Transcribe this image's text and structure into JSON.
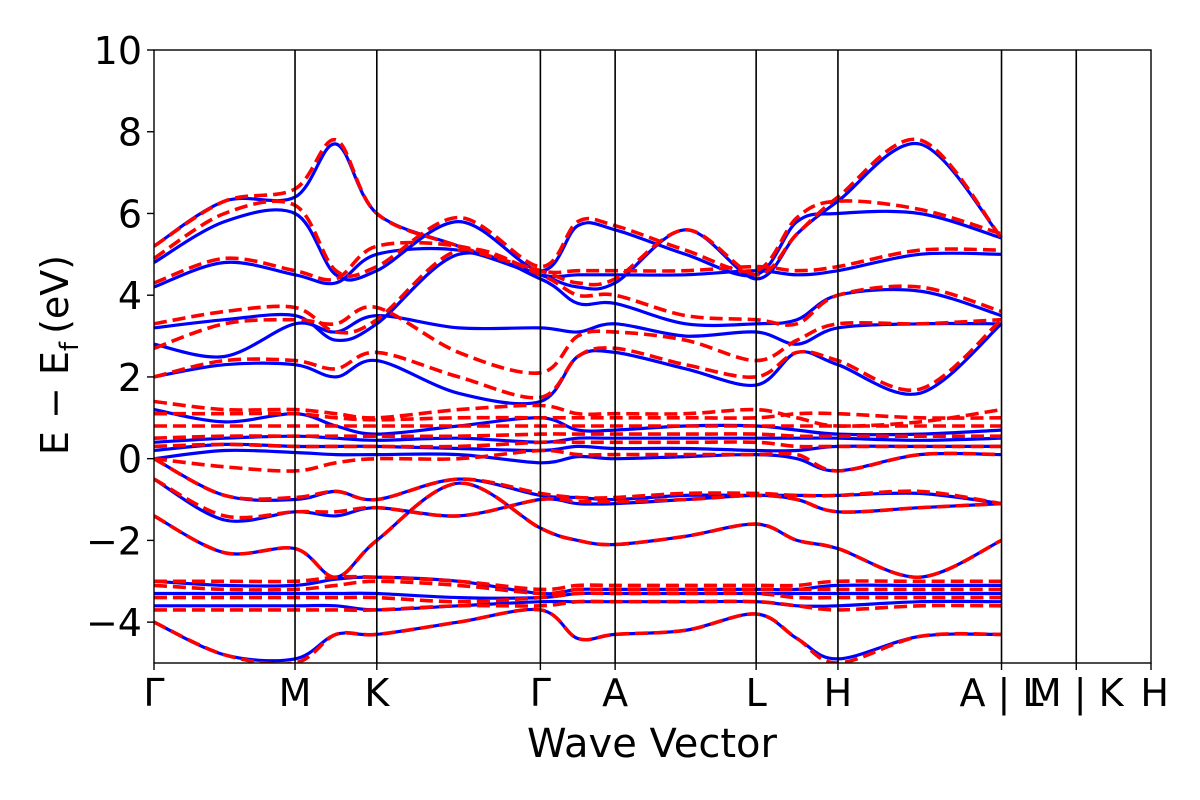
{
  "chart_data": {
    "type": "line",
    "title": "",
    "xlabel": "Wave Vector",
    "ylabel_main": "E − E",
    "ylabel_sub": "f",
    "ylabel_unit": "(eV)",
    "ylim": [
      -5,
      10
    ],
    "yticks": [
      {
        "value": -4,
        "label": "−4"
      },
      {
        "value": -2,
        "label": "−2"
      },
      {
        "value": 0,
        "label": "0"
      },
      {
        "value": 2,
        "label": "2"
      },
      {
        "value": 4,
        "label": "4"
      },
      {
        "value": 6,
        "label": "6"
      },
      {
        "value": 8,
        "label": "8"
      },
      {
        "value": 10,
        "label": "10"
      }
    ],
    "kpath": [
      {
        "label": "Γ",
        "pos": 0.0
      },
      {
        "label": "M",
        "pos": 1.0
      },
      {
        "label": "K",
        "pos": 1.58
      },
      {
        "label": "Γ",
        "pos": 2.74
      },
      {
        "label": "A",
        "pos": 3.27
      },
      {
        "label": "L",
        "pos": 4.27
      },
      {
        "label": "H",
        "pos": 4.85
      },
      {
        "label": "A | L",
        "pos": 6.01
      },
      {
        "label": "M | K",
        "pos": 6.54
      },
      {
        "label": "H",
        "pos": 7.07
      }
    ],
    "grid": false,
    "series": [
      {
        "style": "solid",
        "color": "#0000ff",
        "bands": [
          [
            -4.0,
            -4.8,
            -4.9,
            -4.3,
            -4.3,
            -4.0,
            -3.7,
            -4.4,
            -4.3,
            -4.2,
            -3.8,
            -4.4,
            -4.9,
            -4.35,
            -4.3
          ],
          [
            -3.6,
            -3.6,
            -3.6,
            -3.6,
            -3.7,
            -3.6,
            -3.5,
            -3.5,
            -3.5,
            -3.5,
            -3.5,
            -3.6,
            -3.6,
            -3.5,
            -3.5
          ],
          [
            -3.3,
            -3.3,
            -3.3,
            -3.3,
            -3.3,
            -3.4,
            -3.4,
            -3.3,
            -3.3,
            -3.3,
            -3.3,
            -3.3,
            -3.3,
            -3.3,
            -3.3
          ],
          [
            -3.0,
            -3.1,
            -3.1,
            -2.95,
            -2.9,
            -3.0,
            -3.3,
            -3.2,
            -3.2,
            -3.2,
            -3.2,
            -3.2,
            -3.1,
            -3.1,
            -3.1
          ],
          [
            -1.4,
            -2.3,
            -2.2,
            -2.9,
            -2.0,
            -0.6,
            -1.7,
            -2.0,
            -2.1,
            -1.9,
            -1.6,
            -2.0,
            -2.2,
            -2.9,
            -2.0
          ],
          [
            -0.5,
            -1.5,
            -1.3,
            -1.4,
            -1.2,
            -1.4,
            -1.0,
            -1.1,
            -1.1,
            -1.0,
            -0.9,
            -1.0,
            -1.3,
            -1.2,
            -1.1
          ],
          [
            0.0,
            -0.9,
            -1.0,
            -0.8,
            -1.0,
            -0.5,
            -0.9,
            -0.95,
            -1.0,
            -0.9,
            -0.9,
            -0.9,
            -0.9,
            -0.85,
            -1.1
          ],
          [
            0.0,
            0.2,
            0.15,
            0.1,
            0.1,
            0.1,
            -0.1,
            0.05,
            0.0,
            0.05,
            0.1,
            0.0,
            -0.3,
            0.1,
            0.1
          ],
          [
            0.2,
            0.35,
            0.3,
            0.3,
            0.3,
            0.25,
            0.2,
            0.3,
            0.25,
            0.25,
            0.2,
            0.2,
            0.3,
            0.3,
            0.3
          ],
          [
            0.4,
            0.5,
            0.55,
            0.5,
            0.45,
            0.5,
            0.4,
            0.5,
            0.5,
            0.5,
            0.5,
            0.5,
            0.5,
            0.45,
            0.5
          ],
          [
            1.2,
            0.9,
            1.1,
            0.8,
            0.6,
            0.8,
            1.0,
            0.7,
            0.7,
            0.8,
            0.8,
            0.7,
            0.6,
            0.6,
            0.7
          ],
          [
            2.0,
            2.3,
            2.3,
            2.0,
            2.4,
            1.6,
            1.4,
            2.5,
            2.6,
            2.2,
            1.8,
            2.6,
            2.3,
            1.6,
            3.3
          ],
          [
            2.8,
            2.5,
            3.3,
            3.1,
            3.5,
            3.2,
            3.2,
            3.1,
            3.3,
            3.0,
            3.1,
            2.8,
            3.2,
            3.3,
            3.3
          ],
          [
            3.2,
            3.4,
            3.5,
            2.9,
            3.3,
            5.0,
            4.4,
            3.8,
            3.8,
            3.3,
            3.3,
            3.4,
            4.0,
            4.1,
            3.5
          ],
          [
            4.2,
            4.8,
            4.5,
            4.3,
            5.0,
            5.1,
            4.5,
            4.5,
            4.5,
            4.5,
            4.6,
            4.5,
            4.6,
            5.0,
            5.0
          ],
          [
            4.8,
            5.8,
            6.0,
            4.5,
            4.6,
            5.8,
            4.6,
            5.7,
            5.6,
            5.0,
            4.5,
            5.8,
            6.0,
            6.0,
            5.4
          ],
          [
            5.2,
            6.3,
            6.4,
            7.7,
            6.0,
            5.2,
            4.5,
            4.2,
            4.3,
            5.6,
            4.4,
            5.5,
            6.3,
            7.7,
            5.4
          ]
        ]
      },
      {
        "style": "dashed",
        "color": "#ff0000",
        "bands": [
          [
            -4.0,
            -4.8,
            -5.0,
            -4.3,
            -4.3,
            -4.0,
            -3.7,
            -4.4,
            -4.3,
            -4.2,
            -3.8,
            -4.4,
            -5.0,
            -4.35,
            -4.3
          ],
          [
            -3.7,
            -3.7,
            -3.7,
            -3.7,
            -3.7,
            -3.6,
            -3.6,
            -3.5,
            -3.5,
            -3.5,
            -3.5,
            -3.6,
            -3.7,
            -3.6,
            -3.6
          ],
          [
            -3.4,
            -3.4,
            -3.4,
            -3.4,
            -3.4,
            -3.5,
            -3.4,
            -3.3,
            -3.3,
            -3.3,
            -3.3,
            -3.4,
            -3.4,
            -3.4,
            -3.4
          ],
          [
            -3.1,
            -3.2,
            -3.2,
            -3.1,
            -3.0,
            -3.1,
            -3.3,
            -3.2,
            -3.2,
            -3.2,
            -3.2,
            -3.2,
            -3.2,
            -3.2,
            -3.2
          ],
          [
            -3.0,
            -3.0,
            -3.0,
            -2.9,
            -2.9,
            -3.0,
            -3.2,
            -3.1,
            -3.1,
            -3.1,
            -3.1,
            -3.1,
            -3.0,
            -3.0,
            -3.0
          ],
          [
            -1.4,
            -2.3,
            -2.2,
            -2.9,
            -2.0,
            -0.6,
            -1.7,
            -2.0,
            -2.1,
            -1.9,
            -1.6,
            -2.0,
            -2.2,
            -2.9,
            -2.0
          ],
          [
            -0.5,
            -1.4,
            -1.3,
            -1.3,
            -1.2,
            -1.4,
            -1.0,
            -1.05,
            -1.05,
            -1.0,
            -0.9,
            -1.0,
            -1.3,
            -1.2,
            -1.1
          ],
          [
            0.0,
            -0.9,
            -0.95,
            -0.8,
            -1.0,
            -0.5,
            -0.85,
            -0.95,
            -0.95,
            -0.85,
            -0.85,
            -0.9,
            -0.9,
            -0.8,
            -1.1
          ],
          [
            0.0,
            -0.2,
            -0.3,
            -0.1,
            0.0,
            0.0,
            0.2,
            0.1,
            0.1,
            0.1,
            0.1,
            0.1,
            -0.3,
            0.1,
            0.1
          ],
          [
            0.3,
            0.35,
            0.3,
            0.3,
            0.3,
            0.3,
            0.4,
            0.4,
            0.4,
            0.4,
            0.4,
            0.3,
            0.3,
            0.3,
            0.3
          ],
          [
            0.5,
            0.55,
            0.55,
            0.55,
            0.55,
            0.55,
            0.6,
            0.6,
            0.6,
            0.6,
            0.6,
            0.55,
            0.55,
            0.55,
            0.55
          ],
          [
            0.8,
            0.8,
            0.8,
            0.8,
            0.8,
            0.8,
            0.8,
            0.8,
            0.8,
            0.8,
            0.8,
            0.8,
            0.8,
            0.8,
            0.8
          ],
          [
            1.1,
            1.1,
            1.1,
            1.0,
            0.95,
            1.0,
            1.0,
            1.0,
            1.0,
            1.0,
            1.0,
            1.1,
            1.1,
            1.0,
            1.0
          ],
          [
            1.4,
            1.2,
            1.2,
            1.1,
            1.0,
            1.2,
            1.3,
            1.1,
            1.1,
            1.1,
            1.2,
            1.0,
            0.8,
            0.9,
            1.2
          ],
          [
            2.0,
            2.4,
            2.4,
            2.2,
            2.6,
            2.0,
            1.5,
            2.5,
            2.7,
            2.3,
            2.0,
            2.6,
            2.4,
            1.7,
            3.4
          ],
          [
            2.7,
            3.3,
            3.4,
            3.3,
            3.7,
            2.6,
            2.1,
            3.0,
            3.1,
            2.9,
            2.4,
            2.9,
            3.3,
            3.3,
            3.4
          ],
          [
            3.3,
            3.6,
            3.7,
            3.1,
            3.4,
            5.1,
            4.5,
            4.0,
            4.0,
            3.5,
            3.4,
            3.3,
            4.0,
            4.2,
            3.6
          ],
          [
            4.3,
            4.9,
            4.6,
            4.4,
            5.2,
            5.2,
            4.6,
            4.6,
            4.6,
            4.6,
            4.7,
            4.6,
            4.7,
            5.1,
            5.1
          ],
          [
            4.9,
            6.0,
            6.2,
            4.6,
            4.7,
            5.9,
            4.7,
            5.8,
            5.7,
            5.1,
            4.6,
            5.9,
            6.3,
            6.1,
            5.5
          ],
          [
            5.2,
            6.3,
            6.6,
            7.8,
            6.0,
            5.2,
            4.6,
            4.3,
            4.4,
            5.6,
            4.5,
            5.5,
            6.4,
            7.8,
            5.4
          ]
        ]
      }
    ]
  }
}
